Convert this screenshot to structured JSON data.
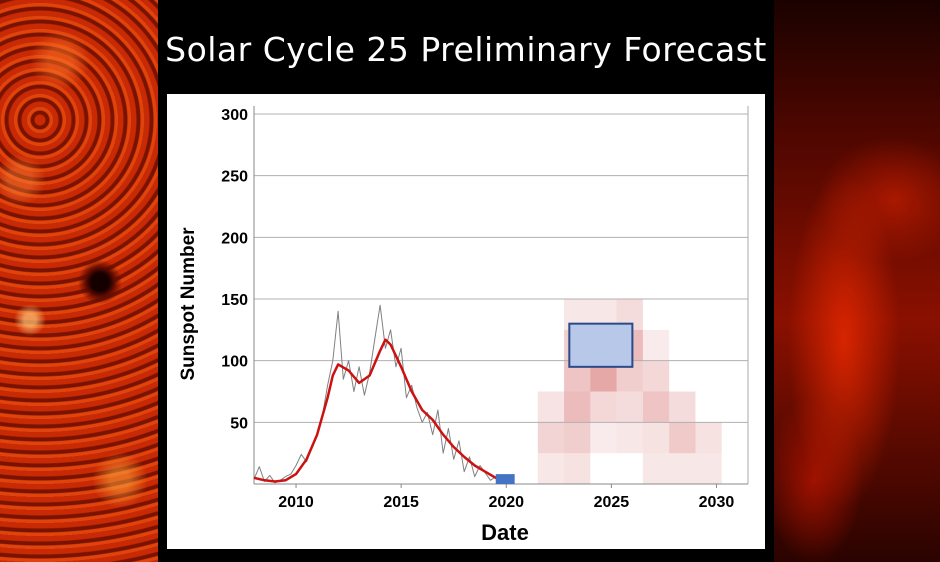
{
  "page": {
    "title": "Solar Cycle 25 Preliminary Forecast"
  },
  "colors": {
    "observed_line": "#808080",
    "smoothed_line": "#cc1111",
    "forecast_box_fill": "#b8c8e8",
    "forecast_box_stroke": "#2a4a8a",
    "minimum_marker": "#4472c4",
    "grid": "#b0b0b0"
  },
  "chart_data": {
    "type": "line",
    "title": "",
    "xlabel": "Date",
    "ylabel": "Sunspot Number",
    "xlim": [
      2008,
      2031.5
    ],
    "ylim": [
      0,
      300
    ],
    "x_ticks": [
      2010,
      2015,
      2020,
      2025,
      2030
    ],
    "y_ticks": [
      50,
      100,
      150,
      200,
      250,
      300
    ],
    "grid": "horizontal",
    "series": [
      {
        "style": "thin-gray",
        "x": [
          2008.0,
          2008.25,
          2008.5,
          2008.75,
          2009.0,
          2009.25,
          2009.5,
          2009.75,
          2010.0,
          2010.25,
          2010.5,
          2010.75,
          2011.0,
          2011.25,
          2011.5,
          2011.75,
          2012.0,
          2012.25,
          2012.5,
          2012.75,
          2013.0,
          2013.25,
          2013.5,
          2013.75,
          2014.0,
          2014.25,
          2014.5,
          2014.75,
          2015.0,
          2015.25,
          2015.5,
          2015.75,
          2016.0,
          2016.25,
          2016.5,
          2016.75,
          2017.0,
          2017.25,
          2017.5,
          2017.75,
          2018.0,
          2018.25,
          2018.5,
          2018.75,
          2019.0,
          2019.25,
          2019.5,
          2019.75
        ],
        "y": [
          4,
          14,
          2,
          7,
          1,
          3,
          6,
          8,
          15,
          24,
          18,
          30,
          40,
          55,
          80,
          100,
          140,
          85,
          100,
          75,
          95,
          72,
          90,
          118,
          145,
          110,
          125,
          95,
          110,
          70,
          80,
          62,
          50,
          58,
          40,
          60,
          25,
          45,
          20,
          35,
          10,
          22,
          6,
          15,
          9,
          3,
          6,
          1
        ]
      },
      {
        "style": "smoothed-red",
        "x": [
          2008.0,
          2008.5,
          2009.0,
          2009.5,
          2010.0,
          2010.5,
          2011.0,
          2011.5,
          2011.75,
          2012.0,
          2012.5,
          2013.0,
          2013.5,
          2014.0,
          2014.25,
          2014.5,
          2015.0,
          2015.5,
          2016.0,
          2016.5,
          2017.0,
          2017.5,
          2018.0,
          2018.5,
          2019.0,
          2019.5,
          2019.8
        ],
        "y": [
          5,
          3,
          2,
          3,
          8,
          20,
          40,
          70,
          88,
          97,
          92,
          82,
          88,
          108,
          117,
          113,
          95,
          75,
          60,
          52,
          40,
          30,
          22,
          15,
          10,
          5,
          3
        ]
      }
    ],
    "forecast": {
      "box": {
        "x": [
          2023,
          2026
        ],
        "y": [
          95,
          130
        ]
      },
      "solar_minimum_marker": {
        "x": [
          2019.5,
          2020.4
        ],
        "y": [
          0,
          8
        ]
      },
      "probability_cells": [
        {
          "x": 2021.5,
          "y": 0,
          "alpha": 0.12
        },
        {
          "x": 2021.5,
          "y": 25,
          "alpha": 0.22
        },
        {
          "x": 2021.5,
          "y": 50,
          "alpha": 0.14
        },
        {
          "x": 2022.75,
          "y": 0,
          "alpha": 0.15
        },
        {
          "x": 2022.75,
          "y": 25,
          "alpha": 0.25
        },
        {
          "x": 2022.75,
          "y": 50,
          "alpha": 0.35
        },
        {
          "x": 2022.75,
          "y": 75,
          "alpha": 0.3
        },
        {
          "x": 2022.75,
          "y": 100,
          "alpha": 0.25
        },
        {
          "x": 2022.75,
          "y": 125,
          "alpha": 0.12
        },
        {
          "x": 2024.0,
          "y": 25,
          "alpha": 0.1
        },
        {
          "x": 2024.0,
          "y": 50,
          "alpha": 0.2
        },
        {
          "x": 2024.0,
          "y": 75,
          "alpha": 0.45
        },
        {
          "x": 2024.0,
          "y": 100,
          "alpha": 0.3
        },
        {
          "x": 2024.0,
          "y": 125,
          "alpha": 0.12
        },
        {
          "x": 2025.25,
          "y": 25,
          "alpha": 0.12
        },
        {
          "x": 2025.25,
          "y": 50,
          "alpha": 0.18
        },
        {
          "x": 2025.25,
          "y": 75,
          "alpha": 0.25
        },
        {
          "x": 2025.25,
          "y": 100,
          "alpha": 0.35
        },
        {
          "x": 2025.25,
          "y": 125,
          "alpha": 0.18
        },
        {
          "x": 2026.5,
          "y": 0,
          "alpha": 0.12
        },
        {
          "x": 2026.5,
          "y": 25,
          "alpha": 0.15
        },
        {
          "x": 2026.5,
          "y": 50,
          "alpha": 0.3
        },
        {
          "x": 2026.5,
          "y": 75,
          "alpha": 0.2
        },
        {
          "x": 2026.5,
          "y": 100,
          "alpha": 0.1
        },
        {
          "x": 2027.75,
          "y": 0,
          "alpha": 0.12
        },
        {
          "x": 2027.75,
          "y": 25,
          "alpha": 0.28
        },
        {
          "x": 2027.75,
          "y": 50,
          "alpha": 0.18
        },
        {
          "x": 2029.0,
          "y": 0,
          "alpha": 0.12
        },
        {
          "x": 2029.0,
          "y": 25,
          "alpha": 0.15
        }
      ]
    }
  }
}
